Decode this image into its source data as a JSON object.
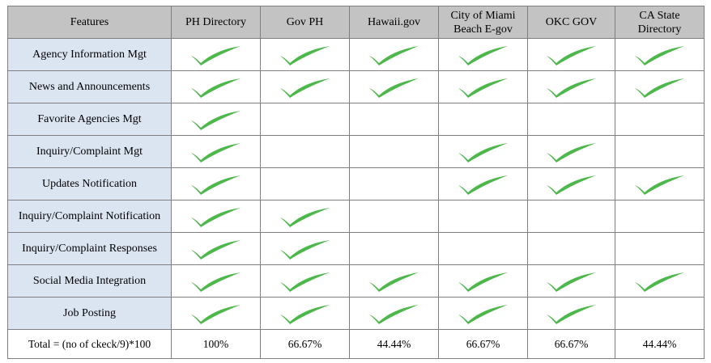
{
  "header": {
    "features": "Features",
    "columns": [
      "PH Directory",
      "Gov PH",
      "Hawaii.gov",
      "City of Miami Beach E-gov",
      "OKC GOV",
      "CA State Directory"
    ]
  },
  "rows": [
    {
      "feature": "Agency Information Mgt",
      "checks": [
        true,
        true,
        true,
        true,
        true,
        true
      ]
    },
    {
      "feature": "News and Announcements",
      "checks": [
        true,
        true,
        true,
        true,
        true,
        true
      ]
    },
    {
      "feature": "Favorite Agencies Mgt",
      "checks": [
        true,
        false,
        false,
        false,
        false,
        false
      ]
    },
    {
      "feature": "Inquiry/Complaint Mgt",
      "checks": [
        true,
        false,
        false,
        true,
        true,
        false
      ]
    },
    {
      "feature": "Updates Notification",
      "checks": [
        true,
        false,
        false,
        true,
        true,
        true
      ]
    },
    {
      "feature": "Inquiry/Complaint Notification",
      "checks": [
        true,
        true,
        false,
        false,
        false,
        false
      ]
    },
    {
      "feature": "Inquiry/Complaint Responses",
      "checks": [
        true,
        true,
        false,
        false,
        false,
        false
      ]
    },
    {
      "feature": "Social Media Integration",
      "checks": [
        true,
        true,
        true,
        true,
        true,
        true
      ]
    },
    {
      "feature": "Job Posting",
      "checks": [
        true,
        true,
        true,
        true,
        true,
        false
      ]
    }
  ],
  "total": {
    "label": "Total = (no of ckeck/9)*100",
    "values": [
      "100%",
      "66.67%",
      "44.44%",
      "66.67%",
      "66.67%",
      "44.44%"
    ]
  },
  "icons": {
    "check": "checkmark-icon"
  },
  "colors": {
    "checkmark": "#4cb84a",
    "header_bg": "#c3c3c3",
    "feature_bg": "#dbe5f1",
    "grid": "#7f7f7f"
  }
}
